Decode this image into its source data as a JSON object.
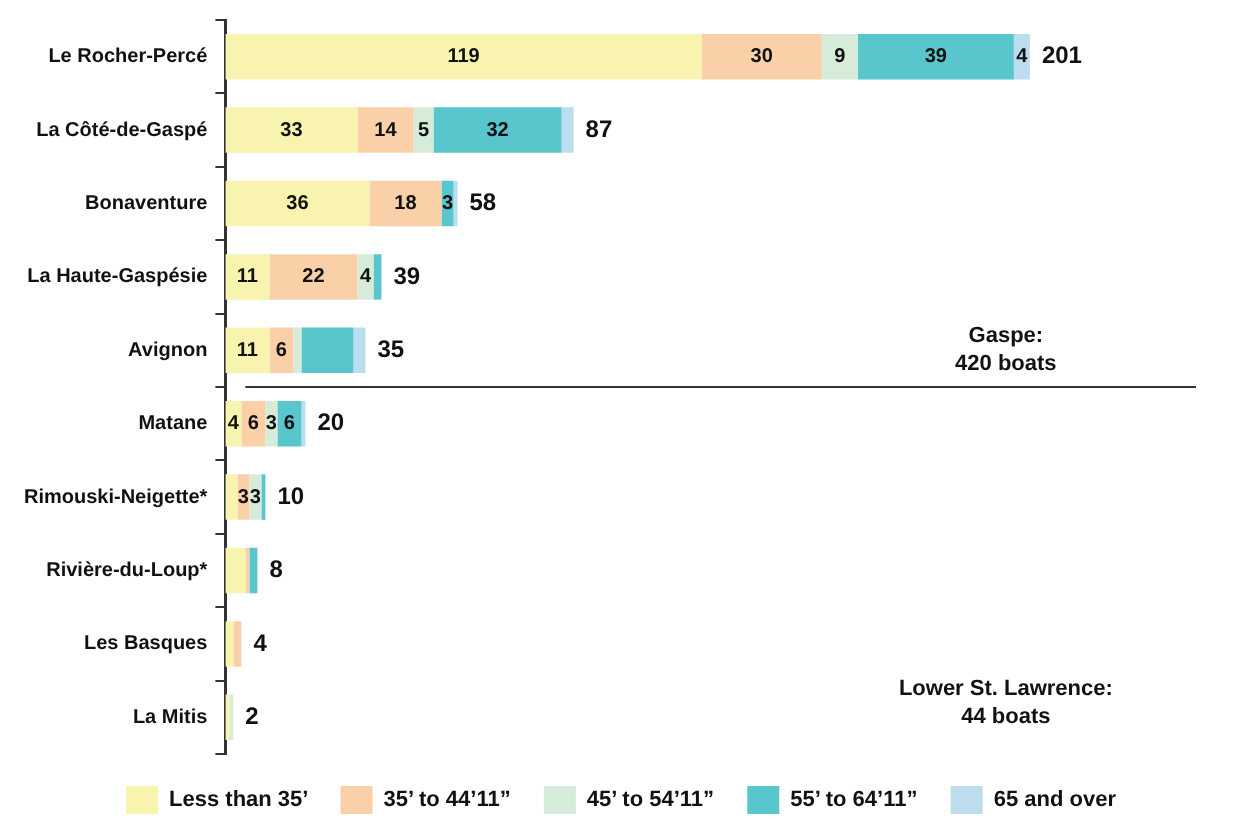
{
  "chart_data": {
    "type": "bar",
    "orientation": "horizontal",
    "stacked": true,
    "categories": [
      "Le Rocher-Percé",
      "La Côté-de-Gaspé",
      "Bonaventure",
      "La Haute-Gaspésie",
      "Avignon",
      "Matane",
      "Rimouski-Neigette*",
      "Rivière-du-Loup*",
      "Les Basques",
      "La Mitis"
    ],
    "series": [
      {
        "name": "Less than 35’",
        "color": "#f8f3ae",
        "values": [
          119,
          33,
          36,
          11,
          11,
          4,
          3,
          5,
          2,
          1
        ],
        "value_labels": [
          "119",
          "33",
          "36",
          "11",
          "11",
          "4",
          null,
          null,
          null,
          null
        ]
      },
      {
        "name": "35’ to 44’11”",
        "color": "#f9d0a8",
        "values": [
          30,
          14,
          18,
          22,
          6,
          6,
          3,
          1,
          2,
          0
        ],
        "value_labels": [
          "30",
          "14",
          "18",
          "22",
          "6",
          "6",
          "3",
          null,
          null,
          null
        ]
      },
      {
        "name": "45’ to 54’11”",
        "color": "#d6ecd8",
        "values": [
          9,
          5,
          0,
          4,
          2,
          3,
          3,
          0,
          0,
          1
        ],
        "value_labels": [
          "9",
          "5",
          null,
          "4",
          null,
          "3",
          "3",
          null,
          null,
          null
        ]
      },
      {
        "name": "55’ to 64’11”",
        "color": "#58c6cc",
        "values": [
          39,
          32,
          3,
          2,
          13,
          6,
          1,
          2,
          0,
          0
        ],
        "value_labels": [
          "39",
          "32",
          "3",
          null,
          null,
          "6",
          null,
          null,
          null,
          null
        ]
      },
      {
        "name": "65 and over",
        "color": "#bcdcf0",
        "values": [
          4,
          3,
          1,
          0,
          3,
          1,
          0,
          0,
          0,
          0
        ],
        "value_labels": [
          "4",
          null,
          null,
          null,
          null,
          null,
          null,
          null,
          null,
          null
        ]
      }
    ],
    "totals": [
      "201",
      "87",
      "58",
      "39",
      "35",
      "20",
      "10",
      "8",
      "4",
      "2"
    ],
    "annotations": [
      "Gaspe:\n420 boats",
      "Lower St. Lawrence:\n44 boats"
    ],
    "legend": "bottom"
  }
}
